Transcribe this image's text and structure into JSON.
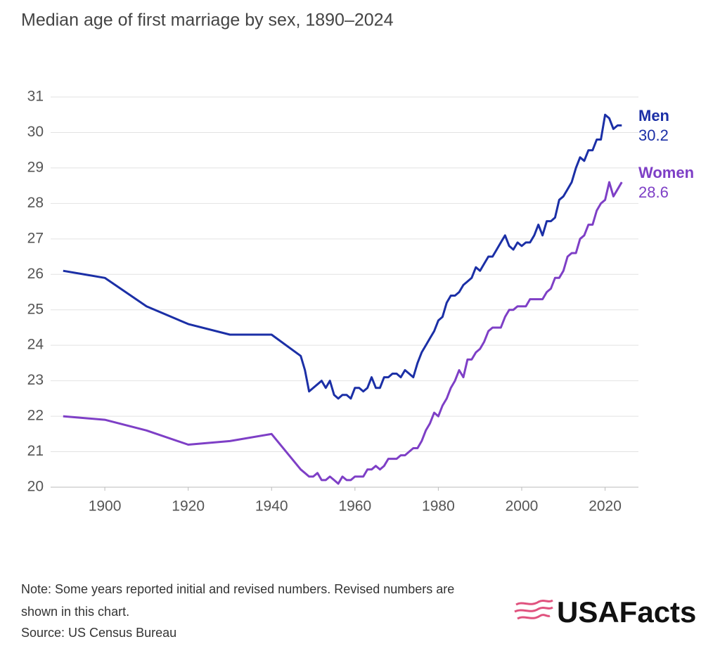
{
  "chart_data": {
    "type": "line",
    "title": "Median age of first marriage by sex, 1890–2024",
    "x": [
      1890,
      1900,
      1910,
      1920,
      1930,
      1940,
      1947,
      1948,
      1949,
      1950,
      1951,
      1952,
      1953,
      1954,
      1955,
      1956,
      1957,
      1958,
      1959,
      1960,
      1961,
      1962,
      1963,
      1964,
      1965,
      1966,
      1967,
      1968,
      1969,
      1970,
      1971,
      1972,
      1973,
      1974,
      1975,
      1976,
      1977,
      1978,
      1979,
      1980,
      1981,
      1982,
      1983,
      1984,
      1985,
      1986,
      1987,
      1988,
      1989,
      1990,
      1991,
      1992,
      1993,
      1994,
      1995,
      1996,
      1997,
      1998,
      1999,
      2000,
      2001,
      2002,
      2003,
      2004,
      2005,
      2006,
      2007,
      2008,
      2009,
      2010,
      2011,
      2012,
      2013,
      2014,
      2015,
      2016,
      2017,
      2018,
      2019,
      2020,
      2021,
      2022,
      2023,
      2024
    ],
    "series": [
      {
        "name": "Men",
        "color": "#1b2fa6",
        "values": [
          26.1,
          25.9,
          25.1,
          24.6,
          24.3,
          24.3,
          23.7,
          23.3,
          22.7,
          22.8,
          22.9,
          23.0,
          22.8,
          23.0,
          22.6,
          22.5,
          22.6,
          22.6,
          22.5,
          22.8,
          22.8,
          22.7,
          22.8,
          23.1,
          22.8,
          22.8,
          23.1,
          23.1,
          23.2,
          23.2,
          23.1,
          23.3,
          23.2,
          23.1,
          23.5,
          23.8,
          24.0,
          24.2,
          24.4,
          24.7,
          24.8,
          25.2,
          25.4,
          25.4,
          25.5,
          25.7,
          25.8,
          25.9,
          26.2,
          26.1,
          26.3,
          26.5,
          26.5,
          26.7,
          26.9,
          27.1,
          26.8,
          26.7,
          26.9,
          26.8,
          26.9,
          26.9,
          27.1,
          27.4,
          27.1,
          27.5,
          27.5,
          27.6,
          28.1,
          28.2,
          28.4,
          28.6,
          29.0,
          29.3,
          29.2,
          29.5,
          29.5,
          29.8,
          29.8,
          30.5,
          30.4,
          30.1,
          30.2,
          30.2
        ]
      },
      {
        "name": "Women",
        "color": "#7e3fc6",
        "values": [
          22.0,
          21.9,
          21.6,
          21.2,
          21.3,
          21.5,
          20.5,
          20.4,
          20.3,
          20.3,
          20.4,
          20.2,
          20.2,
          20.3,
          20.2,
          20.1,
          20.3,
          20.2,
          20.2,
          20.3,
          20.3,
          20.3,
          20.5,
          20.5,
          20.6,
          20.5,
          20.6,
          20.8,
          20.8,
          20.8,
          20.9,
          20.9,
          21.0,
          21.1,
          21.1,
          21.3,
          21.6,
          21.8,
          22.1,
          22.0,
          22.3,
          22.5,
          22.8,
          23.0,
          23.3,
          23.1,
          23.6,
          23.6,
          23.8,
          23.9,
          24.1,
          24.4,
          24.5,
          24.5,
          24.5,
          24.8,
          25.0,
          25.0,
          25.1,
          25.1,
          25.1,
          25.3,
          25.3,
          25.3,
          25.3,
          25.5,
          25.6,
          25.9,
          25.9,
          26.1,
          26.5,
          26.6,
          26.6,
          27.0,
          27.1,
          27.4,
          27.4,
          27.8,
          28.0,
          28.1,
          28.6,
          28.2,
          28.4,
          28.6
        ]
      }
    ],
    "xlim": [
      1887,
      2028
    ],
    "xticks": [
      1900,
      1920,
      1940,
      1960,
      1980,
      2000,
      2020
    ],
    "ylim": [
      20,
      31
    ],
    "yticks": [
      20,
      21,
      22,
      23,
      24,
      25,
      26,
      27,
      28,
      29,
      30,
      31
    ],
    "grid": true
  },
  "note": "Note: Some years reported initial and revised numbers. Revised numbers are shown in this chart.",
  "source": "Source: US Census Bureau",
  "logo": "USAFacts"
}
